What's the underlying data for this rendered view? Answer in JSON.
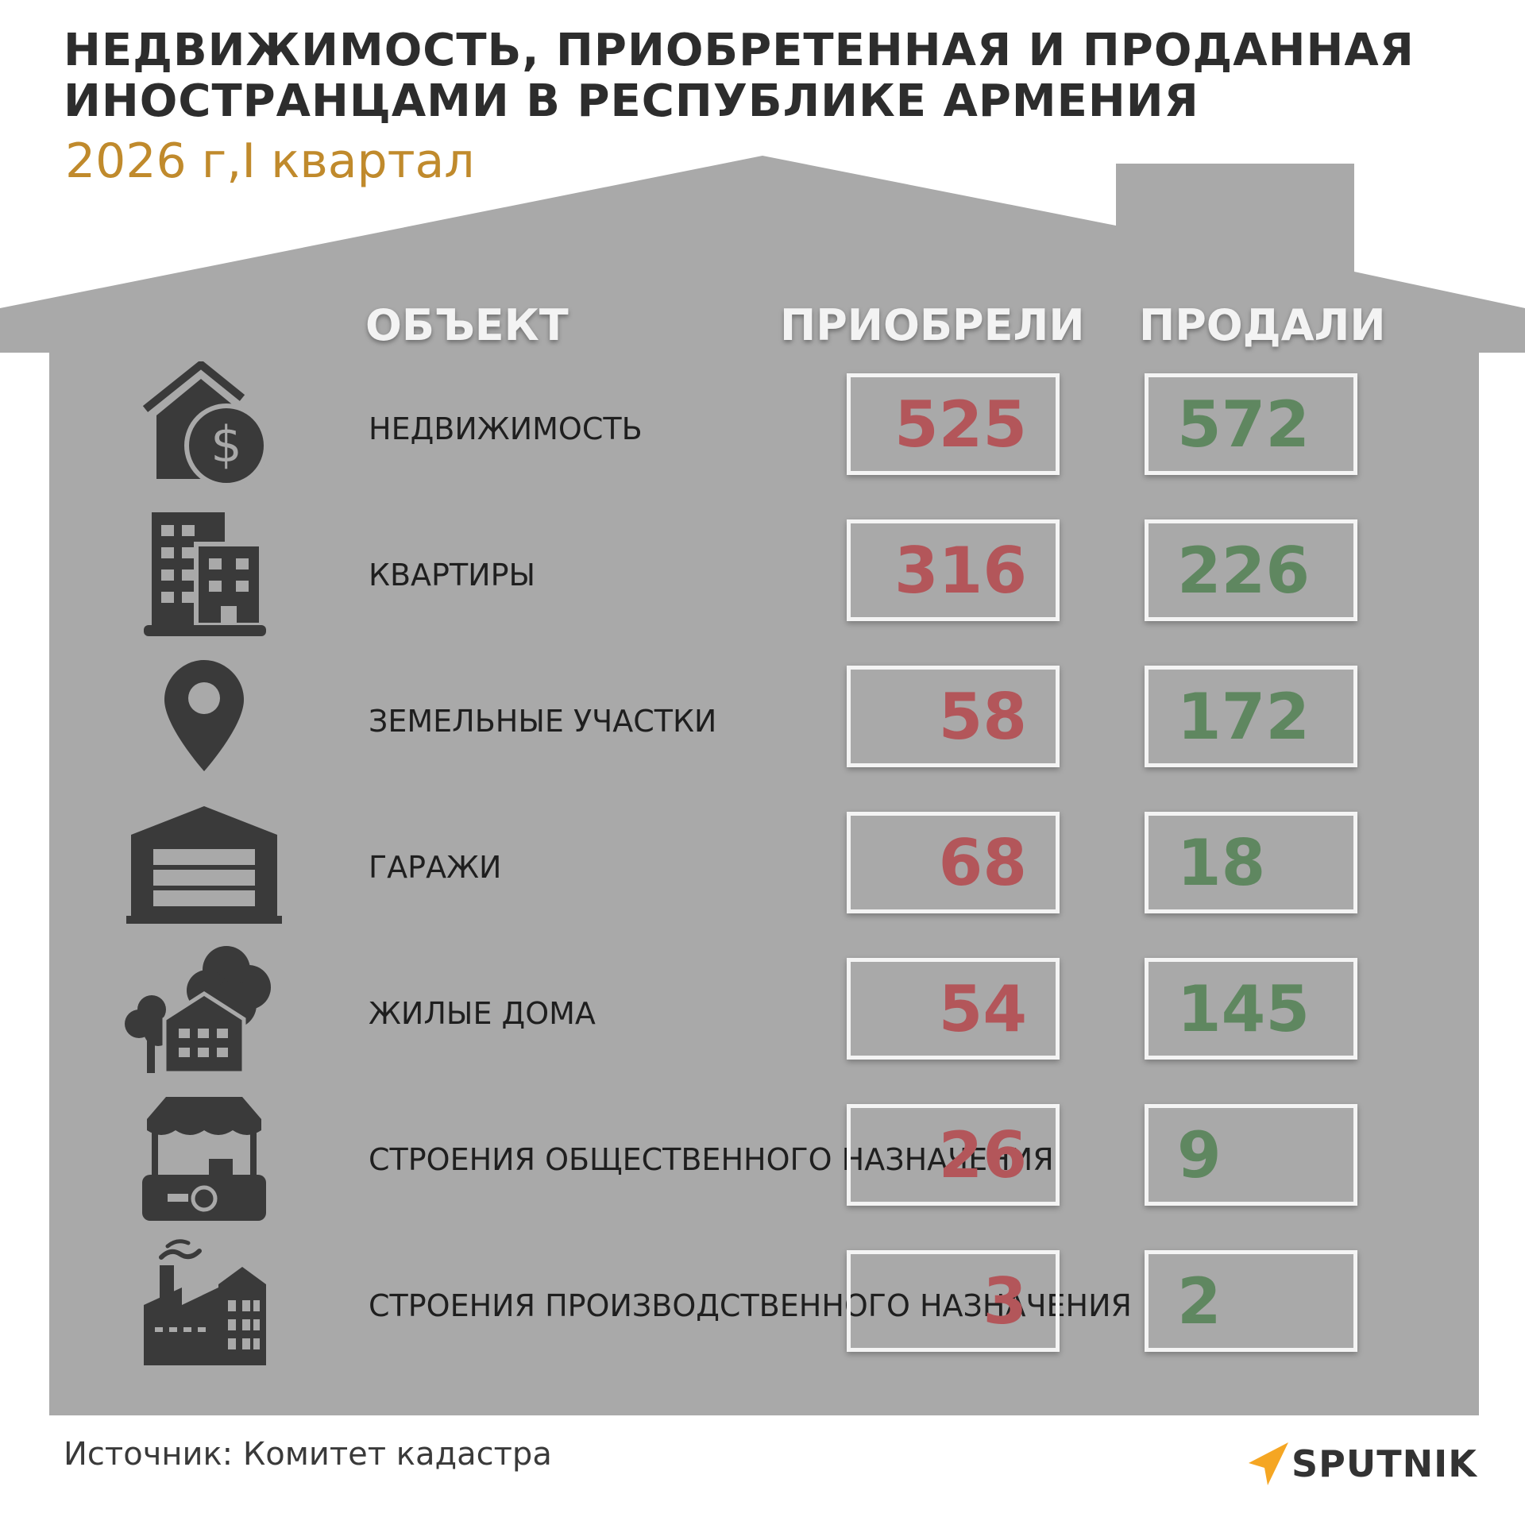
{
  "title": "НЕДВИЖИМОСТЬ, ПРИОБРЕТЕННАЯ И ПРОДАННАЯ ИНОСТРАНЦАМИ В РЕСПУБЛИКЕ АРМЕНИЯ",
  "subtitle": "2026 г,I квартал",
  "headers": {
    "object": "ОБЪЕКТ",
    "acquired": "ПРИОБРЕЛИ",
    "sold": "ПРОДАЛИ"
  },
  "source": "Источник: Комитет кадастра",
  "logo": "SPUTNIK",
  "colors": {
    "acquired": "#b3565a",
    "sold": "#5f8760",
    "house": "#a9a9a9",
    "subtitle": "#c08a2c",
    "logo_accent": "#f5a623"
  },
  "chart_data": {
    "type": "table",
    "title": "НЕДВИЖИМОСТЬ, ПРИОБРЕТЕННАЯ И ПРОДАННАЯ ИНОСТРАНЦАМИ В РЕСПУБЛИКЕ АРМЕНИЯ",
    "subtitle": "2026 г,I квартал",
    "columns": [
      "ОБЪЕКТ",
      "ПРИОБРЕЛИ",
      "ПРОДАЛИ"
    ],
    "rows": [
      {
        "icon": "house-dollar-icon",
        "label": "НЕДВИЖИМОСТЬ",
        "acquired": 525,
        "sold": 572
      },
      {
        "icon": "apartment-buildings-icon",
        "label": "КВАРТИРЫ",
        "acquired": 316,
        "sold": 226
      },
      {
        "icon": "map-pin-icon",
        "label": "ЗЕМЕЛЬНЫЕ УЧАСТКИ",
        "acquired": 58,
        "sold": 172
      },
      {
        "icon": "garage-icon",
        "label": "ГАРАЖИ",
        "acquired": 68,
        "sold": 18
      },
      {
        "icon": "house-trees-icon",
        "label": "ЖИЛЫЕ ДОМА",
        "acquired": 54,
        "sold": 145
      },
      {
        "icon": "market-stall-icon",
        "label": "СТРОЕНИЯ ОБЩЕСТВЕННОГО НАЗНАЧЕНИЯ",
        "acquired": 26,
        "sold": 9
      },
      {
        "icon": "factory-icon",
        "label": "СТРОЕНИЯ ПРОИЗВОДСТВЕННОГО НАЗНАЧЕНИЯ",
        "acquired": 3,
        "sold": 2
      }
    ]
  }
}
